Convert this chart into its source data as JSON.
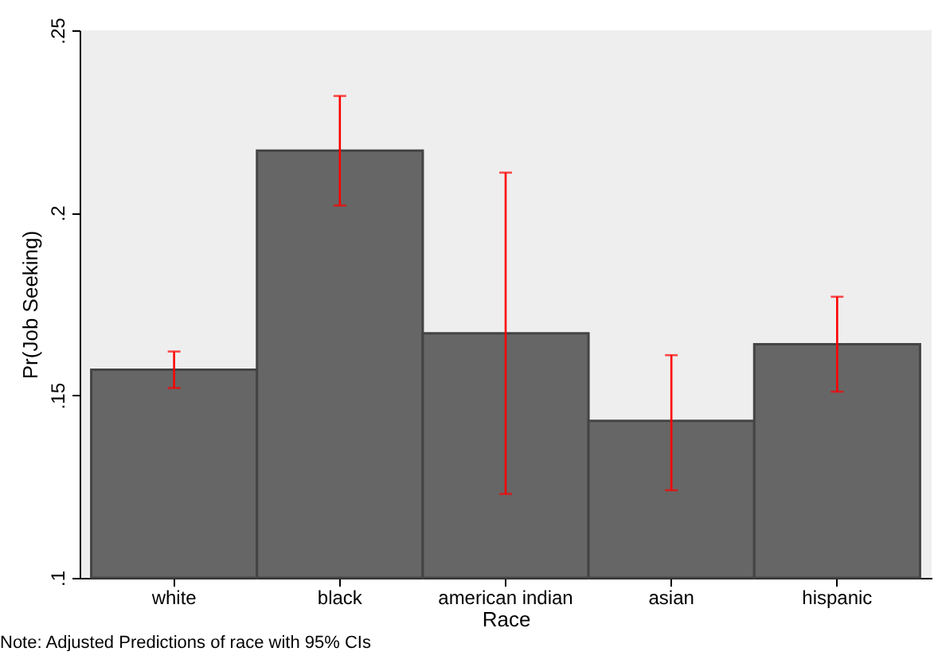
{
  "chart_data": {
    "type": "bar",
    "xlabel": "Race",
    "ylabel": "Pr(Job Seeking)",
    "categories": [
      "white",
      "black",
      "american indian",
      "asian",
      "hispanic"
    ],
    "values": [
      0.157,
      0.217,
      0.167,
      0.143,
      0.164
    ],
    "errors": [
      [
        0.152,
        0.162
      ],
      [
        0.202,
        0.232
      ],
      [
        0.123,
        0.211
      ],
      [
        0.124,
        0.161
      ],
      [
        0.151,
        0.177
      ]
    ],
    "color": "#666666",
    "ylim": [
      0.1,
      0.25
    ],
    "yticks": [
      {
        "value": 0.1,
        "label": ".1"
      },
      {
        "value": 0.15,
        "label": ".15"
      },
      {
        "value": 0.2,
        "label": ".2"
      },
      {
        "value": 0.25,
        "label": ".25"
      }
    ],
    "grid": false,
    "annotations": [
      "Note: Adjusted Predictions of race with 95% CIs"
    ]
  }
}
